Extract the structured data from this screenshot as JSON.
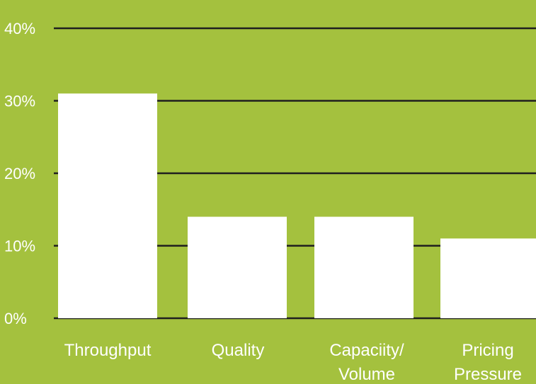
{
  "chart_data": {
    "type": "bar",
    "categories": [
      [
        "Throughput"
      ],
      [
        "Quality"
      ],
      [
        "Capaciity/",
        "Volume"
      ],
      [
        "Pricing",
        "Pressure"
      ]
    ],
    "values": [
      31,
      14,
      14,
      11
    ],
    "yticks": [
      "0%",
      "10%",
      "20%",
      "30%",
      "40%"
    ],
    "ylim": [
      0,
      40
    ],
    "grid": true,
    "colors": {
      "background": "#a4c13e",
      "bars": "#ffffff",
      "gridlines": "#1f1f1f",
      "text": "#ffffff"
    }
  }
}
